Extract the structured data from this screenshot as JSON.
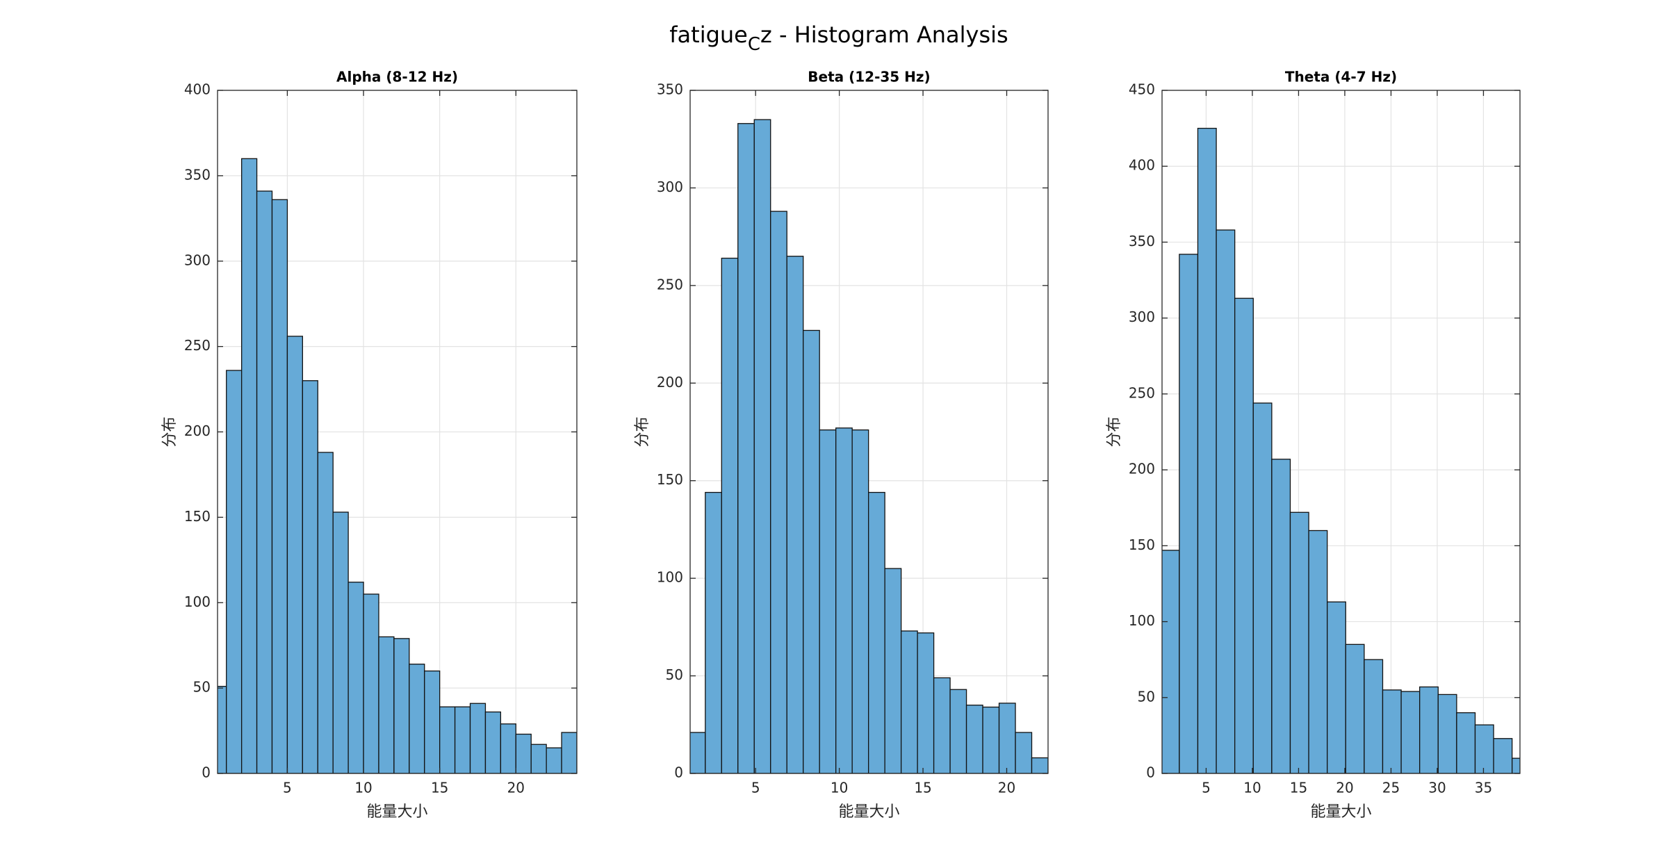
{
  "suptitle": {
    "main": "fatigue",
    "subscript": "C",
    "rest": "z - Histogram Analysis"
  },
  "chart_data": [
    {
      "type": "histogram",
      "title": "Alpha (8-12 Hz)",
      "xlabel": "能量大小",
      "ylabel": "分布",
      "bins": [
        0,
        1,
        2,
        3,
        4,
        5,
        6,
        7,
        8,
        9,
        10,
        11,
        12,
        13,
        14,
        15,
        16,
        17,
        18,
        19,
        20,
        21,
        22,
        23,
        24
      ],
      "values": [
        51,
        236,
        360,
        341,
        336,
        256,
        230,
        188,
        153,
        112,
        105,
        80,
        79,
        64,
        60,
        39,
        39,
        41,
        36,
        29,
        23,
        17,
        15,
        24
      ],
      "color": "#66aad7",
      "xlim": [
        0.42,
        24
      ],
      "ylim": [
        0,
        400
      ],
      "xticks": [
        5,
        10,
        15,
        20
      ],
      "yticks": [
        0,
        50,
        100,
        150,
        200,
        250,
        300,
        350,
        400
      ],
      "grid": true
    },
    {
      "type": "histogram",
      "title": "Beta (12-35 Hz)",
      "xlabel": "能量大小",
      "ylabel": "分布",
      "bins": [
        1.02,
        1.995,
        2.97,
        3.945,
        4.92,
        5.895,
        6.87,
        7.845,
        8.82,
        9.795,
        10.77,
        11.745,
        12.72,
        13.695,
        14.67,
        15.645,
        16.62,
        17.595,
        18.57,
        19.545,
        20.52,
        21.495,
        22.47
      ],
      "values": [
        21,
        144,
        264,
        333,
        335,
        288,
        265,
        227,
        176,
        177,
        176,
        144,
        105,
        73,
        72,
        49,
        43,
        35,
        34,
        36,
        21,
        8
      ],
      "color": "#66aad7",
      "xlim": [
        1.09,
        22.47
      ],
      "ylim": [
        0,
        350
      ],
      "xticks": [
        5,
        10,
        15,
        20
      ],
      "yticks": [
        0,
        50,
        100,
        150,
        200,
        250,
        300,
        350
      ],
      "grid": true
    },
    {
      "type": "histogram",
      "title": "Theta (4-7 Hz)",
      "xlabel": "能量大小",
      "ylabel": "分布",
      "bins": [
        0.1,
        2.1,
        4.1,
        6.1,
        8.1,
        10.1,
        12.1,
        14.1,
        16.1,
        18.1,
        20.1,
        22.1,
        24.1,
        26.1,
        28.1,
        30.1,
        32.1,
        34.1,
        36.1,
        38.1,
        40.1
      ],
      "values": [
        147,
        342,
        425,
        358,
        313,
        244,
        207,
        172,
        160,
        113,
        85,
        75,
        55,
        54,
        57,
        52,
        40,
        32,
        23,
        10
      ],
      "color": "#66aad7",
      "xlim": [
        0.23,
        38.95
      ],
      "ylim": [
        0,
        450
      ],
      "xticks": [
        5,
        10,
        15,
        20,
        25,
        30,
        35
      ],
      "yticks": [
        0,
        50,
        100,
        150,
        200,
        250,
        300,
        350,
        400,
        450
      ],
      "grid": true
    }
  ]
}
